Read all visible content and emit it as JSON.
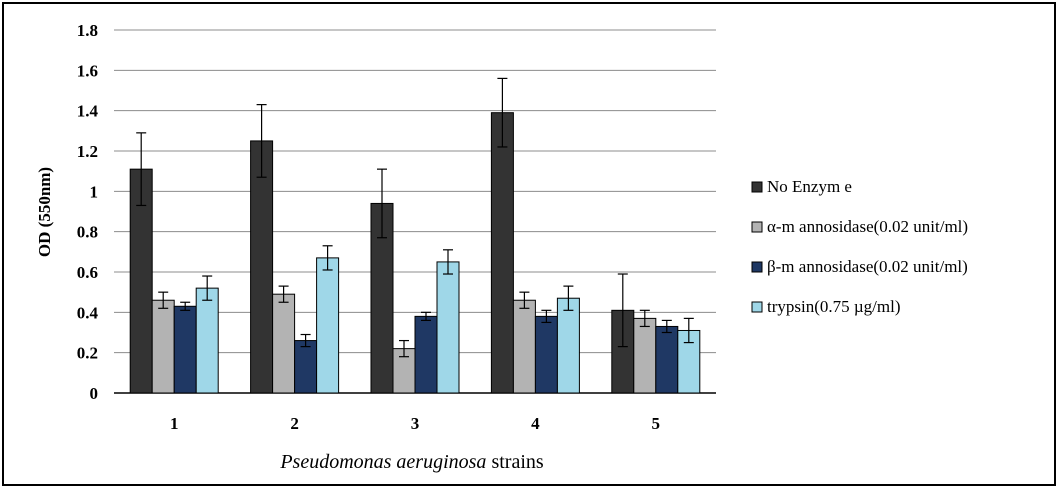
{
  "chart_data": {
    "type": "bar",
    "ylabel": "OD (550nm)",
    "xlabel_italic": "Pseudomonas aeruginosa",
    "xlabel_rest": " strains",
    "categories": [
      "1",
      "2",
      "3",
      "4",
      "5"
    ],
    "ylim": [
      0,
      1.8
    ],
    "yticks": [
      "0",
      "0.2",
      "0.4",
      "0.6",
      "0.8",
      "1",
      "1.2",
      "1.4",
      "1.6",
      "1.8"
    ],
    "grid": true,
    "legend_position": "right",
    "series": [
      {
        "name": "No Enzym e",
        "color": "#333333",
        "values": [
          1.11,
          1.25,
          0.94,
          1.39,
          0.41
        ],
        "errors": [
          0.18,
          0.18,
          0.17,
          0.17,
          0.18
        ]
      },
      {
        "name": "α-m annosidase(0.02 unit/ml)",
        "color": "#b3b3b3",
        "values": [
          0.46,
          0.49,
          0.22,
          0.46,
          0.37
        ],
        "errors": [
          0.04,
          0.04,
          0.04,
          0.04,
          0.04
        ]
      },
      {
        "name": "β-m annosidase(0.02 unit/ml)",
        "color": "#1f3864",
        "values": [
          0.43,
          0.26,
          0.38,
          0.38,
          0.33
        ],
        "errors": [
          0.02,
          0.03,
          0.02,
          0.03,
          0.03
        ]
      },
      {
        "name": "trypsin(0.75 µg/ml)",
        "color": "#9fd7e8",
        "values": [
          0.52,
          0.67,
          0.65,
          0.47,
          0.31
        ],
        "errors": [
          0.06,
          0.06,
          0.06,
          0.06,
          0.06
        ]
      }
    ]
  }
}
